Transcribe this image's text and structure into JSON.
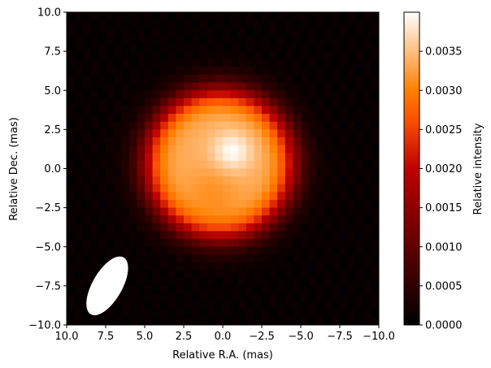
{
  "chart_data": {
    "type": "heatmap",
    "title": "",
    "xlabel": "Relative R.A. (mas)",
    "ylabel": "Relative Dec. (mas)",
    "xlim": [
      10.0,
      -10.0
    ],
    "ylim": [
      -10.0,
      10.0
    ],
    "x_ticks": [
      "10.0",
      "7.5",
      "5.0",
      "2.5",
      "0.0",
      "−2.5",
      "−5.0",
      "−7.5",
      "−10.0"
    ],
    "y_ticks": [
      "10.0",
      "7.5",
      "5.0",
      "2.5",
      "0.0",
      "−2.5",
      "−5.0",
      "−7.5",
      "−10.0"
    ],
    "colorbar": {
      "label": "Relative intensity",
      "min": 0.0,
      "max": 0.004,
      "colormap": "gist_heat",
      "ticks": [
        "0.0000",
        "0.0005",
        "0.0010",
        "0.0015",
        "0.0020",
        "0.0025",
        "0.0030",
        "0.0035"
      ]
    },
    "grid": false,
    "image": {
      "description_of_model": "bright resolved disk centred near (0,0) with radius ~5 mas, peak at about (-0.5, 1.0) mas",
      "grid_size": 40,
      "disk_center": [
        0.2,
        0.3
      ],
      "disk_radius": 4.7,
      "disk_level": 0.0034,
      "peak_position": [
        -0.6,
        1.1
      ],
      "peak_value": 0.004
    },
    "beam": {
      "center": [
        7.4,
        -7.5
      ],
      "major_fwhm": 4.2,
      "minor_fwhm": 1.9,
      "position_angle_deg": 30,
      "color": "#ffffff"
    }
  }
}
